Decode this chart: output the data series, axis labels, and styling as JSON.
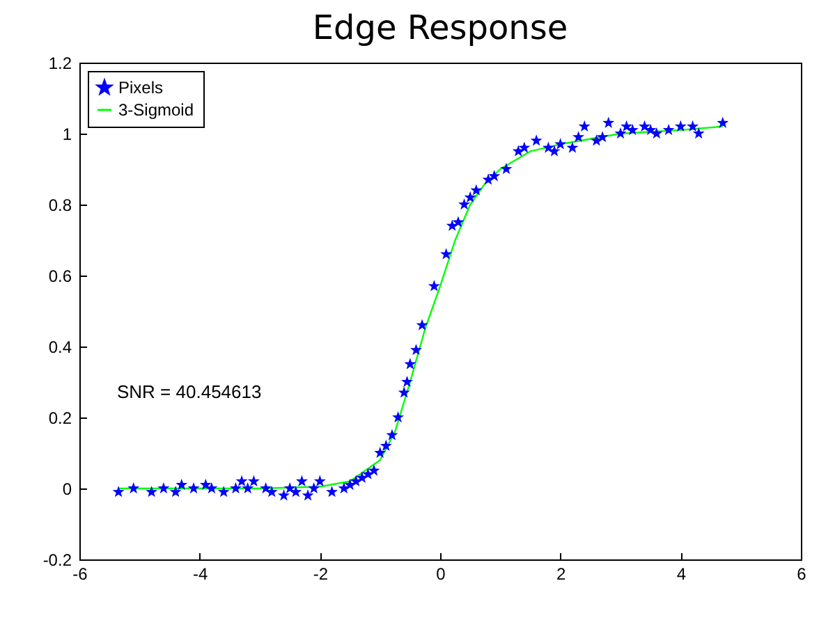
{
  "chart_data": {
    "type": "scatter",
    "title": "Edge Response",
    "annotations": [
      "SNR =  40.454613"
    ],
    "xlim": [
      -6,
      6
    ],
    "xticks": [
      -6,
      -4,
      -2,
      0,
      2,
      4,
      6
    ],
    "ylim": [
      -0.2,
      1.2
    ],
    "yticks": [
      -0.2,
      0,
      0.2,
      0.4,
      0.6,
      0.8,
      1,
      1.2
    ],
    "grid": false,
    "legend": "top left",
    "series": [
      {
        "name": "Pixels",
        "marker": "star",
        "color": "#0000ff",
        "x": [
          -5.35,
          -5.1,
          -4.8,
          -4.6,
          -4.4,
          -4.3,
          -4.1,
          -3.9,
          -3.8,
          -3.6,
          -3.4,
          -3.3,
          -3.2,
          -3.1,
          -2.9,
          -2.8,
          -2.6,
          -2.5,
          -2.4,
          -2.3,
          -2.2,
          -2.1,
          -2.0,
          -1.8,
          -1.6,
          -1.5,
          -1.4,
          -1.3,
          -1.2,
          -1.1,
          -1.0,
          -0.9,
          -0.8,
          -0.7,
          -0.6,
          -0.55,
          -0.5,
          -0.4,
          -0.3,
          -0.1,
          0.1,
          0.2,
          0.3,
          0.4,
          0.5,
          0.6,
          0.8,
          0.9,
          1.1,
          1.3,
          1.4,
          1.6,
          1.8,
          1.9,
          2.0,
          2.2,
          2.3,
          2.4,
          2.6,
          2.7,
          2.8,
          3.0,
          3.1,
          3.2,
          3.4,
          3.5,
          3.6,
          3.8,
          4.0,
          4.2,
          4.3,
          4.7
        ],
        "values": [
          -0.01,
          0.0,
          -0.01,
          0.0,
          -0.01,
          0.01,
          0.0,
          0.01,
          0.0,
          -0.01,
          0.0,
          0.02,
          0.0,
          0.02,
          0.0,
          -0.01,
          -0.02,
          0.0,
          -0.01,
          0.02,
          -0.02,
          0.0,
          0.02,
          -0.01,
          0.0,
          0.01,
          0.02,
          0.03,
          0.04,
          0.05,
          0.1,
          0.12,
          0.15,
          0.2,
          0.27,
          0.3,
          0.35,
          0.39,
          0.46,
          0.57,
          0.66,
          0.74,
          0.75,
          0.8,
          0.82,
          0.84,
          0.87,
          0.88,
          0.9,
          0.95,
          0.96,
          0.98,
          0.96,
          0.95,
          0.97,
          0.96,
          0.99,
          1.02,
          0.98,
          0.99,
          1.03,
          1.0,
          1.02,
          1.01,
          1.02,
          1.01,
          1.0,
          1.01,
          1.02,
          1.02,
          1.0,
          1.03
        ]
      },
      {
        "name": "3-Sigmoid",
        "type": "line",
        "marker": "none",
        "line_style": "solid",
        "color": "#00ff00",
        "x": [
          -5.35,
          -3,
          -2,
          -1.5,
          -1,
          -0.75,
          -0.5,
          -0.25,
          0,
          0.25,
          0.5,
          0.75,
          1,
          1.5,
          2,
          3,
          4,
          4.7
        ],
        "values": [
          0,
          0,
          0.005,
          0.02,
          0.08,
          0.16,
          0.3,
          0.45,
          0.57,
          0.7,
          0.8,
          0.86,
          0.9,
          0.95,
          0.97,
          1.0,
          1.01,
          1.02
        ]
      }
    ]
  }
}
